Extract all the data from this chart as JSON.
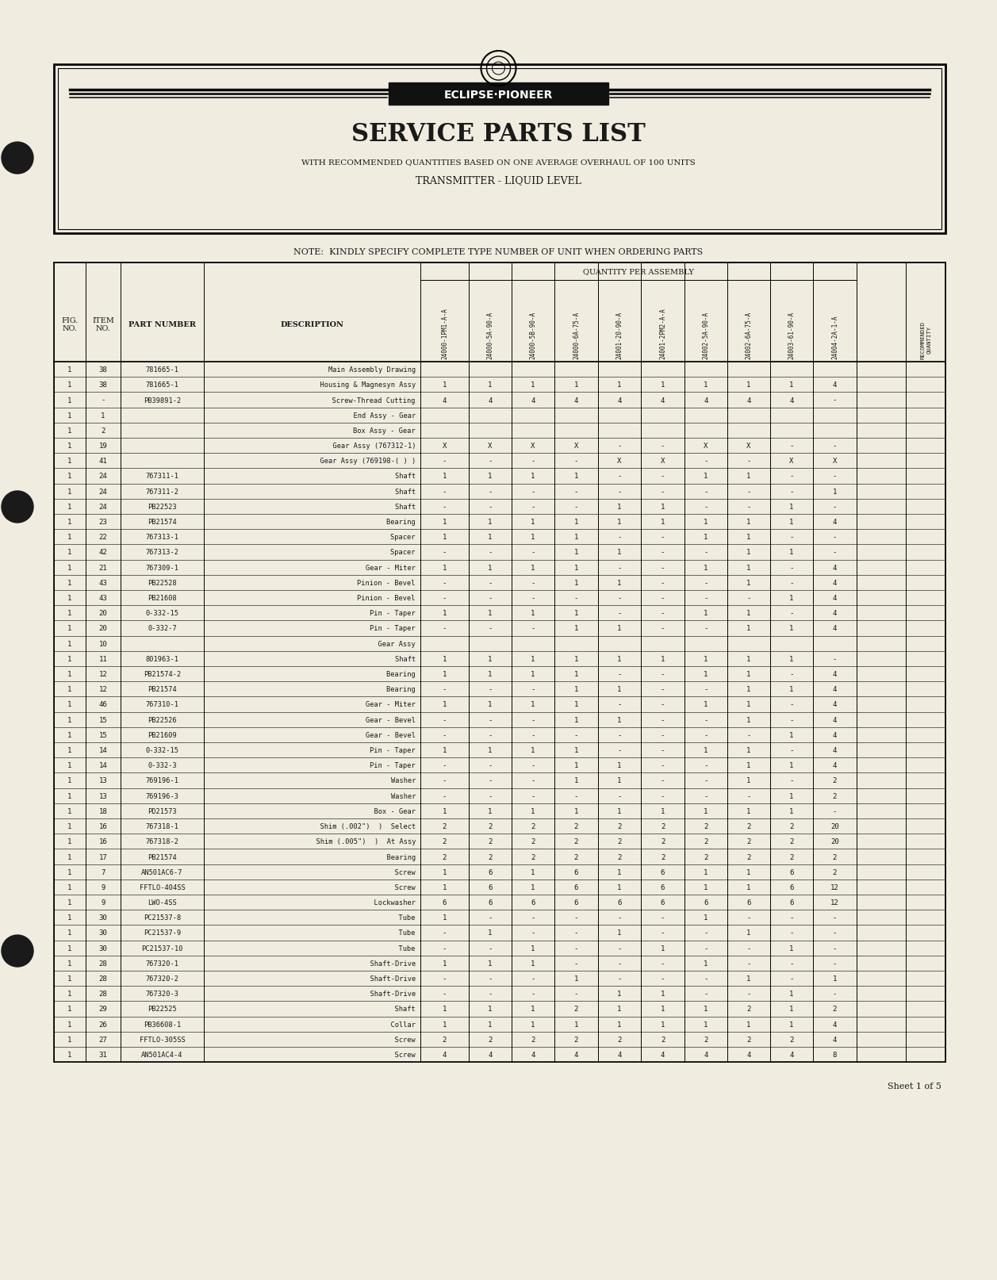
{
  "bg_color": "#f0ece0",
  "title1": "SERVICE PARTS LIST",
  "title2": "WITH RECOMMENDED QUANTITIES BASED ON ONE AVERAGE OVERHAUL OF 100 UNITS",
  "title3": "TRANSMITTER - LIQUID LEVEL",
  "note": "NOTE:  KINDLY SPECIFY COMPLETE TYPE NUMBER OF UNIT WHEN ORDERING PARTS",
  "qty_header": "QUANTITY PER ASSEMBLY",
  "sheet": "Sheet 1 of 5",
  "qty_col_names": [
    "24000-1PM1-A-A",
    "24000-5A-90-A",
    "24000-5B-90-A",
    "24000-6A-75-A",
    "24001-20-90-A",
    "24001-2PM2-A-A",
    "24002-5A-90-A",
    "24002-6A-75-A",
    "24003-61-90-A",
    "24004-2A-1-A"
  ],
  "rows": [
    [
      "1",
      "38",
      "781665-1",
      "Main Assembly Drawing",
      "",
      "",
      "",
      "",
      "",
      "",
      "",
      "",
      "",
      ""
    ],
    [
      "1",
      "38",
      "781665-1",
      "  Housing & Magnesyn Assy",
      "1",
      "1",
      "1",
      "1",
      "1",
      "1",
      "1",
      "1",
      "1",
      "4"
    ],
    [
      "1",
      "-",
      "PB39891-2",
      "  Screw-Thread Cutting",
      "4",
      "4",
      "4",
      "4",
      "4",
      "4",
      "4",
      "4",
      "4",
      "-"
    ],
    [
      "1",
      "1",
      "",
      "  End Assy - Gear",
      "",
      "",
      "",
      "",
      "",
      "",
      "",
      "",
      "",
      ""
    ],
    [
      "1",
      "2",
      "",
      "    Box Assy - Gear",
      "",
      "",
      "",
      "",
      "",
      "",
      "",
      "",
      "",
      ""
    ],
    [
      "1",
      "19",
      "",
      "      Gear Assy (767312-1)",
      "X",
      "X",
      "X",
      "X",
      "-",
      "-",
      "X",
      "X",
      "-",
      "-"
    ],
    [
      "1",
      "41",
      "",
      "      Gear Assy (769198-( ) )",
      "-",
      "-",
      "-",
      "-",
      "X",
      "X",
      "-",
      "-",
      "X",
      "X"
    ],
    [
      "1",
      "24",
      "767311-1",
      "        Shaft",
      "1",
      "1",
      "1",
      "1",
      "-",
      "-",
      "1",
      "1",
      "-",
      "-"
    ],
    [
      "1",
      "24",
      "767311-2",
      "        Shaft",
      "-",
      "-",
      "-",
      "-",
      "-",
      "-",
      "-",
      "-",
      "-",
      "1"
    ],
    [
      "1",
      "24",
      "PB22523",
      "        Shaft",
      "-",
      "-",
      "-",
      "-",
      "1",
      "1",
      "-",
      "-",
      "1",
      "-"
    ],
    [
      "1",
      "23",
      "PB21574",
      "        Bearing",
      "1",
      "1",
      "1",
      "1",
      "1",
      "1",
      "1",
      "1",
      "1",
      "4"
    ],
    [
      "1",
      "22",
      "767313-1",
      "        Spacer",
      "1",
      "1",
      "1",
      "1",
      "-",
      "-",
      "1",
      "1",
      "-",
      "-"
    ],
    [
      "1",
      "42",
      "767313-2",
      "        Spacer",
      "-",
      "-",
      "-",
      "1",
      "1",
      "-",
      "-",
      "1",
      "1",
      "-"
    ],
    [
      "1",
      "21",
      "767309-1",
      "        Gear - Miter",
      "1",
      "1",
      "1",
      "1",
      "-",
      "-",
      "1",
      "1",
      "-",
      "4"
    ],
    [
      "1",
      "43",
      "PB22528",
      "        Pinion - Bevel",
      "-",
      "-",
      "-",
      "1",
      "1",
      "-",
      "-",
      "1",
      "-",
      "4"
    ],
    [
      "1",
      "43",
      "PB21608",
      "        Pinion - Bevel",
      "-",
      "-",
      "-",
      "-",
      "-",
      "-",
      "-",
      "-",
      "1",
      "4"
    ],
    [
      "1",
      "20",
      "0-332-15",
      "        Pin - Taper",
      "1",
      "1",
      "1",
      "1",
      "-",
      "-",
      "1",
      "1",
      "-",
      "4"
    ],
    [
      "1",
      "20",
      "0-332-7",
      "        Pin - Taper",
      "-",
      "-",
      "-",
      "1",
      "1",
      "-",
      "-",
      "1",
      "1",
      "4"
    ],
    [
      "1",
      "10",
      "",
      "  Gear Assy",
      "",
      "",
      "",
      "",
      "",
      "",
      "",
      "",
      "",
      ""
    ],
    [
      "1",
      "11",
      "801963-1",
      "    Shaft",
      "1",
      "1",
      "1",
      "1",
      "1",
      "1",
      "1",
      "1",
      "1",
      "-"
    ],
    [
      "1",
      "12",
      "PB21574-2",
      "    Bearing",
      "1",
      "1",
      "1",
      "1",
      "-",
      "-",
      "1",
      "1",
      "-",
      "4"
    ],
    [
      "1",
      "12",
      "PB21574",
      "    Bearing",
      "-",
      "-",
      "-",
      "1",
      "1",
      "-",
      "-",
      "1",
      "1",
      "4"
    ],
    [
      "1",
      "46",
      "767310-1",
      "    Gear - Miter",
      "1",
      "1",
      "1",
      "1",
      "-",
      "-",
      "1",
      "1",
      "-",
      "4"
    ],
    [
      "1",
      "15",
      "PB22526",
      "    Gear - Bevel",
      "-",
      "-",
      "-",
      "1",
      "1",
      "-",
      "-",
      "1",
      "-",
      "4"
    ],
    [
      "1",
      "15",
      "PB21609",
      "    Gear - Bevel",
      "-",
      "-",
      "-",
      "-",
      "-",
      "-",
      "-",
      "-",
      "1",
      "4"
    ],
    [
      "1",
      "14",
      "0-332-15",
      "    Pin - Taper",
      "1",
      "1",
      "1",
      "1",
      "-",
      "-",
      "1",
      "1",
      "-",
      "4"
    ],
    [
      "1",
      "14",
      "0-332-3",
      "    Pin - Taper",
      "-",
      "-",
      "-",
      "1",
      "1",
      "-",
      "-",
      "1",
      "1",
      "4"
    ],
    [
      "1",
      "13",
      "769196-1",
      "    Washer",
      "-",
      "-",
      "-",
      "1",
      "1",
      "-",
      "-",
      "1",
      "-",
      "2"
    ],
    [
      "1",
      "13",
      "769196-3",
      "    Washer",
      "-",
      "-",
      "-",
      "-",
      "-",
      "-",
      "-",
      "-",
      "1",
      "2"
    ],
    [
      "1",
      "18",
      "PD21573",
      "  Box - Gear",
      "1",
      "1",
      "1",
      "1",
      "1",
      "1",
      "1",
      "1",
      "1",
      "-"
    ],
    [
      "1",
      "16",
      "767318-1",
      "  Shim (.002\")  )  Select",
      "2",
      "2",
      "2",
      "2",
      "2",
      "2",
      "2",
      "2",
      "2",
      "20"
    ],
    [
      "1",
      "16",
      "767318-2",
      "  Shim (.005\")  )  At Assy",
      "2",
      "2",
      "2",
      "2",
      "2",
      "2",
      "2",
      "2",
      "2",
      "20"
    ],
    [
      "1",
      "17",
      "PB21574",
      "  Bearing",
      "2",
      "2",
      "2",
      "2",
      "2",
      "2",
      "2",
      "2",
      "2",
      "2"
    ],
    [
      "1",
      "7",
      "AN501AC6-7",
      "  Screw",
      "1",
      "6",
      "1",
      "6",
      "1",
      "6",
      "1",
      "1",
      "6",
      "2"
    ],
    [
      "1",
      "9",
      "FFTLO-404SS",
      "  Screw",
      "1",
      "6",
      "1",
      "6",
      "1",
      "6",
      "1",
      "1",
      "6",
      "12"
    ],
    [
      "1",
      "9",
      "LWO-4SS",
      "  Lockwasher",
      "6",
      "6",
      "6",
      "6",
      "6",
      "6",
      "6",
      "6",
      "6",
      "12"
    ],
    [
      "1",
      "30",
      "PC21537-8",
      "  Tube",
      "1",
      "-",
      "-",
      "-",
      "-",
      "-",
      "1",
      "-",
      "-",
      "-"
    ],
    [
      "1",
      "30",
      "PC21537-9",
      "  Tube",
      "-",
      "1",
      "-",
      "-",
      "1",
      "-",
      "-",
      "1",
      "-",
      "-"
    ],
    [
      "1",
      "30",
      "PC21537-10",
      "  Tube",
      "-",
      "-",
      "1",
      "-",
      "-",
      "1",
      "-",
      "-",
      "1",
      "-"
    ],
    [
      "1",
      "28",
      "767320-1",
      "  Shaft-Drive",
      "1",
      "1",
      "1",
      "-",
      "-",
      "-",
      "1",
      "-",
      "-",
      "-"
    ],
    [
      "1",
      "28",
      "767320-2",
      "  Shaft-Drive",
      "-",
      "-",
      "-",
      "1",
      "-",
      "-",
      "-",
      "1",
      "-",
      "1"
    ],
    [
      "1",
      "28",
      "767320-3",
      "  Shaft-Drive",
      "-",
      "-",
      "-",
      "-",
      "1",
      "1",
      "-",
      "-",
      "1",
      "-"
    ],
    [
      "1",
      "29",
      "PB22525",
      "  Shaft",
      "1",
      "1",
      "1",
      "2",
      "1",
      "1",
      "1",
      "2",
      "1",
      "2"
    ],
    [
      "1",
      "26",
      "PB36608-1",
      "  Collar",
      "1",
      "1",
      "1",
      "1",
      "1",
      "1",
      "1",
      "1",
      "1",
      "4"
    ],
    [
      "1",
      "27",
      "FFTLO-305SS",
      "  Screw",
      "2",
      "2",
      "2",
      "2",
      "2",
      "2",
      "2",
      "2",
      "2",
      "4"
    ],
    [
      "1",
      "31",
      "AN501AC4-4",
      "  Screw",
      "4",
      "4",
      "4",
      "4",
      "4",
      "4",
      "4",
      "4",
      "4",
      "8"
    ]
  ]
}
